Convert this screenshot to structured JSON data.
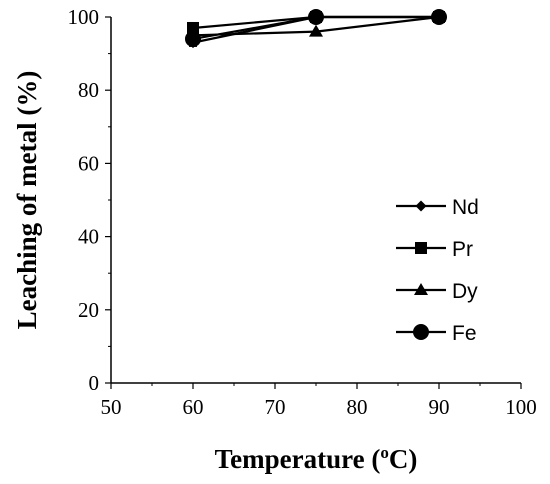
{
  "chart_data": {
    "type": "line",
    "xlabel": "Temperature (",
    "xlabel_sup": "o",
    "xlabel_unit": "C)",
    "ylabel": "Leaching of metal (%)",
    "xlim": [
      50,
      100
    ],
    "ylim": [
      0,
      100
    ],
    "xticks": [
      50,
      60,
      70,
      80,
      90,
      100
    ],
    "yticks": [
      0,
      20,
      40,
      60,
      80,
      100
    ],
    "grid": false,
    "legend_position": "right",
    "series": [
      {
        "name": "Nd",
        "marker": "diamond",
        "x": [
          60,
          75,
          90
        ],
        "y": [
          93,
          100,
          100
        ]
      },
      {
        "name": "Pr",
        "marker": "square",
        "x": [
          60,
          75,
          90
        ],
        "y": [
          97,
          100,
          100
        ]
      },
      {
        "name": "Dy",
        "marker": "triangle",
        "x": [
          60,
          75,
          90
        ],
        "y": [
          95,
          96,
          100
        ]
      },
      {
        "name": "Fe",
        "marker": "circle",
        "x": [
          60,
          75,
          90
        ],
        "y": [
          94,
          100,
          100
        ]
      }
    ],
    "error_bars": {
      "series": "Fe",
      "x": 60,
      "low": 92,
      "high": 96
    }
  }
}
